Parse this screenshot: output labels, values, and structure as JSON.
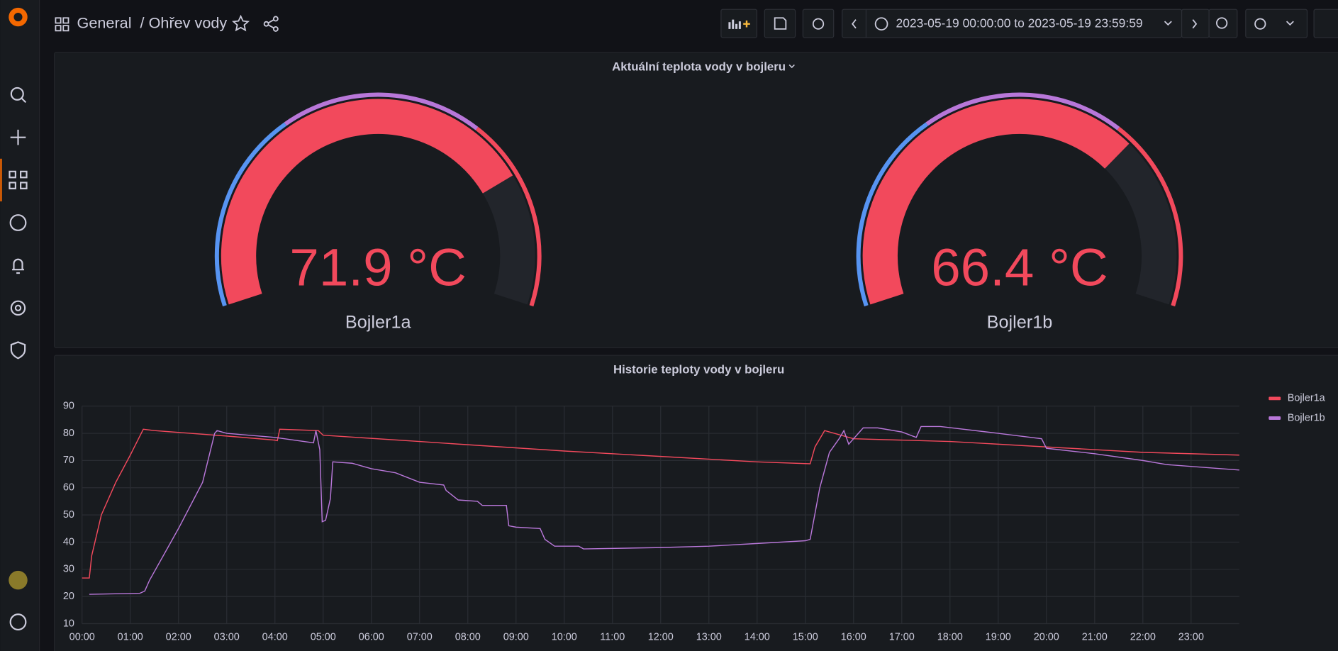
{
  "header": {
    "root": "General",
    "page": "/ Ohřev vody",
    "time_range": "2023-05-19 00:00:00 to 2023-05-19 23:59:59"
  },
  "gauge_panel": {
    "title": "Aktuální teplota vody v bojleru",
    "names": [
      "Bojler1a",
      "Bojler1b"
    ],
    "values": [
      71.9,
      66.4
    ],
    "value_labels": [
      "71.9 °C",
      "66.4 °C"
    ],
    "min": 10,
    "max": 90,
    "thresholds": [
      {
        "from": 10,
        "color": "#5794f2"
      },
      {
        "from": 37,
        "color": "#b877d9"
      },
      {
        "from": 64,
        "color": "#f2495c"
      }
    ]
  },
  "chart_data": {
    "type": "line",
    "title": "Historie teploty vody v bojleru",
    "xlim": [
      0,
      24
    ],
    "xticks": [
      {
        "value": 0,
        "label": "00:00"
      },
      {
        "value": 1,
        "label": "01:00"
      },
      {
        "value": 2,
        "label": "02:00"
      },
      {
        "value": 3,
        "label": "03:00"
      },
      {
        "value": 4,
        "label": "04:00"
      },
      {
        "value": 5,
        "label": "05:00"
      },
      {
        "value": 6,
        "label": "06:00"
      },
      {
        "value": 7,
        "label": "07:00"
      },
      {
        "value": 8,
        "label": "08:00"
      },
      {
        "value": 9,
        "label": "09:00"
      },
      {
        "value": 10,
        "label": "10:00"
      },
      {
        "value": 11,
        "label": "11:00"
      },
      {
        "value": 12,
        "label": "12:00"
      },
      {
        "value": 13,
        "label": "13:00"
      },
      {
        "value": 14,
        "label": "14:00"
      },
      {
        "value": 15,
        "label": "15:00"
      },
      {
        "value": 16,
        "label": "16:00"
      },
      {
        "value": 17,
        "label": "17:00"
      },
      {
        "value": 18,
        "label": "18:00"
      },
      {
        "value": 19,
        "label": "19:00"
      },
      {
        "value": 20,
        "label": "20:00"
      },
      {
        "value": 21,
        "label": "21:00"
      },
      {
        "value": 22,
        "label": "22:00"
      },
      {
        "value": 23,
        "label": "23:00"
      }
    ],
    "ylim": [
      10,
      90
    ],
    "yticks": [
      10,
      20,
      30,
      40,
      50,
      60,
      70,
      80,
      90
    ],
    "grid": true,
    "legend": "right",
    "series": [
      {
        "name": "Bojler1a",
        "color": "#f2495c",
        "x": [
          0.0,
          0.15,
          0.2,
          0.4,
          0.7,
          1.0,
          1.27,
          1.5,
          3,
          4.0,
          4.05,
          4.1,
          4.9,
          5.0,
          7,
          8,
          10,
          12,
          14,
          15.1,
          15.2,
          15.4,
          16,
          18,
          20,
          22,
          24
        ],
        "values": [
          26.8,
          26.8,
          35,
          50,
          62,
          72,
          81.5,
          81,
          79,
          77.5,
          77.3,
          81.5,
          81,
          79.3,
          77,
          75.8,
          73.5,
          71.5,
          69.5,
          68.8,
          75,
          81,
          78,
          77,
          75,
          73,
          72
        ]
      },
      {
        "name": "Bojler1b",
        "color": "#b877d9",
        "x": [
          0.15,
          1.2,
          1.3,
          1.4,
          2.0,
          2.5,
          2.75,
          2.8,
          3,
          4,
          4.8,
          4.85,
          4.93,
          4.98,
          5.05,
          5.15,
          5.2,
          5.6,
          6,
          6.5,
          7,
          7.5,
          7.55,
          7.8,
          8.2,
          8.3,
          8.8,
          8.85,
          9,
          9.5,
          9.6,
          9.8,
          10.3,
          10.4,
          12,
          13,
          14,
          15,
          15.1,
          15.3,
          15.5,
          15.7,
          15.8,
          15.9,
          16.2,
          16.5,
          17,
          17.3,
          17.4,
          17.8,
          19,
          19.9,
          20,
          21,
          22,
          22.5,
          24
        ],
        "values": [
          20.8,
          21.2,
          22,
          26,
          45,
          62,
          80,
          81,
          80,
          78.5,
          76.5,
          81,
          74,
          47.5,
          48,
          56,
          69.5,
          69,
          67,
          65.5,
          62,
          61,
          59,
          55.5,
          55,
          53.5,
          53.5,
          46,
          45.5,
          45,
          41,
          38.5,
          38.5,
          37.5,
          38,
          38.5,
          39.5,
          40.5,
          41,
          60,
          73,
          78,
          81,
          76,
          82,
          82,
          80.5,
          78.5,
          82.5,
          82.5,
          80,
          78,
          74.5,
          72.5,
          70,
          68.5,
          66.5
        ]
      }
    ]
  }
}
